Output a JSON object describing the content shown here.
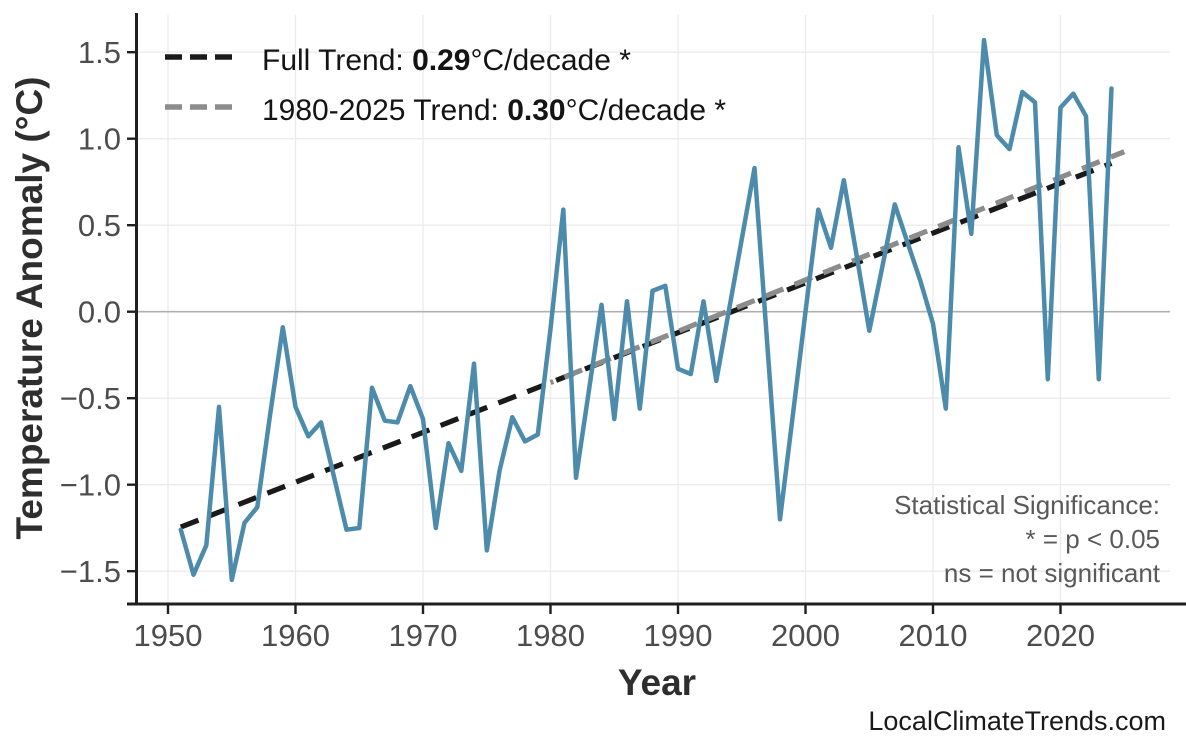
{
  "chart_data": {
    "type": "line",
    "title": "",
    "xlabel": "Year",
    "ylabel": "Temperature Anomaly (°C)",
    "x_ticks": [
      1950,
      1960,
      1970,
      1980,
      1990,
      2000,
      2010,
      2020
    ],
    "y_ticks": [
      1.5,
      1.0,
      0.5,
      0.0,
      -0.5,
      -1.0,
      -1.5
    ],
    "y_tick_labels": [
      "1.5",
      "1.0",
      "0.5",
      "0.0",
      "−0.5",
      "−1.0",
      "−1.5"
    ],
    "xlim": [
      1947.5,
      2028.5
    ],
    "ylim": [
      -1.68,
      1.72
    ],
    "grid": true,
    "grid_color": "#ebebeb",
    "zero_line_color": "#b0b0b0",
    "axis_color": "#1f1f1f",
    "legend_position": "top-left",
    "series": [
      {
        "name": "annual-temperature-anomaly",
        "color": "#4c8bac",
        "years": [
          1951,
          1952,
          1953,
          1954,
          1955,
          1956,
          1957,
          1958,
          1959,
          1960,
          1961,
          1962,
          1963,
          1964,
          1965,
          1966,
          1967,
          1968,
          1969,
          1970,
          1971,
          1972,
          1973,
          1974,
          1975,
          1976,
          1977,
          1978,
          1979,
          1980,
          1981,
          1982,
          1983,
          1984,
          1985,
          1986,
          1987,
          1988,
          1989,
          1990,
          1991,
          1992,
          1993,
          1994,
          1995,
          1996,
          1997,
          1998,
          1999,
          2000,
          2001,
          2002,
          2003,
          2004,
          2005,
          2006,
          2007,
          2008,
          2009,
          2010,
          2011,
          2012,
          2013,
          2014,
          2015,
          2016,
          2017,
          2018,
          2019,
          2020,
          2021,
          2022,
          2023,
          2024
        ],
        "values": [
          -1.26,
          -1.52,
          -1.35,
          -0.55,
          -1.55,
          -1.22,
          -1.13,
          -0.6,
          -0.09,
          -0.55,
          -0.72,
          -0.64,
          -0.95,
          -1.26,
          -1.25,
          -0.44,
          -0.63,
          -0.64,
          -0.43,
          -0.62,
          -1.25,
          -0.76,
          -0.92,
          -0.3,
          -1.38,
          -0.92,
          -0.61,
          -0.75,
          -0.71,
          -0.1,
          0.59,
          -0.96,
          -0.46,
          0.04,
          -0.62,
          0.06,
          -0.56,
          0.12,
          0.15,
          -0.33,
          -0.36,
          0.06,
          -0.4,
          0.01,
          0.42,
          0.83,
          -0.19,
          -1.2,
          -0.6,
          0.0,
          0.59,
          0.37,
          0.76,
          0.33,
          -0.11,
          0.25,
          0.62,
          0.4,
          0.18,
          -0.07,
          -0.56,
          0.95,
          0.45,
          1.57,
          1.02,
          0.94,
          1.27,
          1.21,
          -0.39,
          1.18,
          1.26,
          1.13,
          -0.39,
          1.29
        ]
      }
    ],
    "trend_lines": [
      {
        "name": "full-trend",
        "color": "#1a1a1a",
        "slope_per_decade": 0.29,
        "x": [
          1951,
          2024
        ],
        "y": [
          -1.245,
          0.858
        ],
        "dash": [
          19,
          12
        ],
        "dash_offset": 0
      },
      {
        "name": "trend-1980-2025",
        "color": "#8c8c8c",
        "slope_per_decade": 0.3,
        "x": [
          1980,
          2025
        ],
        "y": [
          -0.41,
          0.925
        ],
        "dash": [
          19,
          12
        ],
        "dash_offset": 16
      }
    ]
  },
  "legend": {
    "items": [
      {
        "prefix": "Full Trend: ",
        "value": "0.29",
        "suffix": "°C/decade *",
        "color": "#1a1a1a"
      },
      {
        "prefix": "1980-2025 Trend: ",
        "value": "0.30",
        "suffix": "°C/decade *",
        "color": "#8c8c8c"
      }
    ]
  },
  "annotations": {
    "significance": [
      "Statistical Significance:",
      "* = p < 0.05",
      "ns = not significant"
    ],
    "watermark": "LocalClimateTrends.com"
  }
}
